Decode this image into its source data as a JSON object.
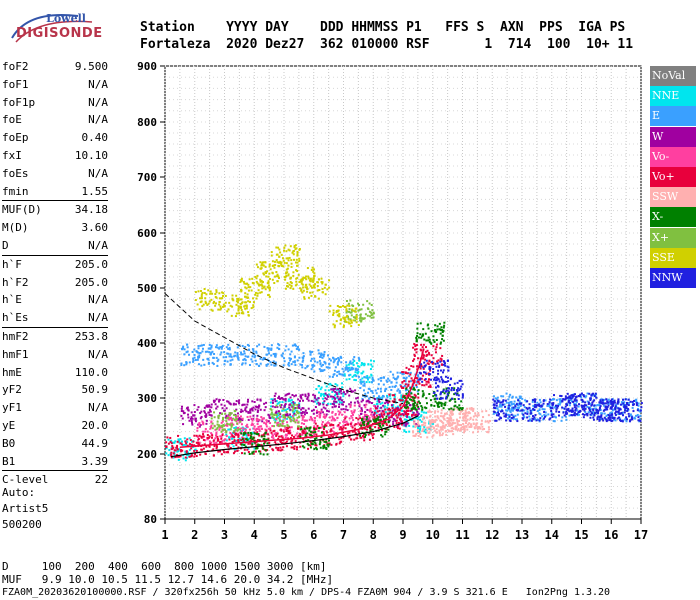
{
  "logo": {
    "brand": "Lowell",
    "product": "DIGISONDE"
  },
  "header": {
    "labels": "Station    YYYY DAY    DDD HHMMSS P1   FFS S  AXN  PPS  IGA PS",
    "values": "Fortaleza  2020 Dez27  362 010000 RSF       1  714  100  10+ 11"
  },
  "params": [
    {
      "name": "foF2",
      "value": "9.500",
      "sep": false
    },
    {
      "name": "foF1",
      "value": "N/A",
      "sep": false
    },
    {
      "name": "foF1p",
      "value": "N/A",
      "sep": false
    },
    {
      "name": "foE",
      "value": "N/A",
      "sep": false
    },
    {
      "name": "foEp",
      "value": "0.40",
      "sep": false
    },
    {
      "name": "fxI",
      "value": "10.10",
      "sep": false
    },
    {
      "name": "foEs",
      "value": "N/A",
      "sep": false
    },
    {
      "name": "fmin",
      "value": "1.55",
      "sep": false
    },
    {
      "name": "MUF(D)",
      "value": "34.18",
      "sep": true
    },
    {
      "name": "M(D)",
      "value": "3.60",
      "sep": false
    },
    {
      "name": "D",
      "value": "N/A",
      "sep": false
    },
    {
      "name": "h`F",
      "value": "205.0",
      "sep": true
    },
    {
      "name": "h`F2",
      "value": "205.0",
      "sep": false
    },
    {
      "name": "h`E",
      "value": "N/A",
      "sep": false
    },
    {
      "name": "h`Es",
      "value": "N/A",
      "sep": false
    },
    {
      "name": "hmF2",
      "value": "253.8",
      "sep": true
    },
    {
      "name": "hmF1",
      "value": "N/A",
      "sep": false
    },
    {
      "name": "hmE",
      "value": "110.0",
      "sep": false
    },
    {
      "name": "yF2",
      "value": "50.9",
      "sep": false
    },
    {
      "name": "yF1",
      "value": "N/A",
      "sep": false
    },
    {
      "name": "yE",
      "value": "20.0",
      "sep": false
    },
    {
      "name": "B0",
      "value": "44.9",
      "sep": false
    },
    {
      "name": "B1",
      "value": "3.39",
      "sep": false
    },
    {
      "name": "C-level",
      "value": "22",
      "sep": true
    }
  ],
  "auto": {
    "line1": "Auto:",
    "line2": "Artist5",
    "line3": "500200"
  },
  "legend": [
    {
      "label": "NoVal",
      "bg": "#808080",
      "fg": "#ffffff"
    },
    {
      "label": "NNE",
      "bg": "#00e5ee",
      "fg": "#ffffff"
    },
    {
      "label": "E",
      "bg": "#3aa0ff",
      "fg": "#ffffff"
    },
    {
      "label": "W",
      "bg": "#a000a0",
      "fg": "#ffffff"
    },
    {
      "label": "Vo-",
      "bg": "#ff3fa0",
      "fg": "#ffffff"
    },
    {
      "label": "Vo+",
      "bg": "#e8003c",
      "fg": "#ffffff"
    },
    {
      "label": "SSW",
      "bg": "#ffb0b0",
      "fg": "#ffffff"
    },
    {
      "label": "X-",
      "bg": "#008000",
      "fg": "#ffffff"
    },
    {
      "label": "X+",
      "bg": "#80c040",
      "fg": "#ffffff"
    },
    {
      "label": "SSE",
      "bg": "#d0d000",
      "fg": "#ffffff"
    },
    {
      "label": "NNW",
      "bg": "#2020e0",
      "fg": "#ffffff"
    }
  ],
  "footer": {
    "d_row": "D     100  200  400  600  800 1000 1500 3000 [km]",
    "muf_row": "MUF   9.9 10.0 10.5 11.5 12.7 14.6 20.0 34.2 [MHz]",
    "file_row": "FZA0M_20203620100000.RSF / 320fx256h 50 kHz 5.0 km / DPS-4 FZA0M 904 / 3.9 S 321.6 E   Ion2Png 1.3.20"
  },
  "chart_data": {
    "type": "scatter",
    "title": "",
    "xlabel": "",
    "ylabel": "",
    "x_ticks": [
      1,
      2,
      3,
      4,
      5,
      6,
      7,
      8,
      9,
      10,
      11,
      12,
      13,
      14,
      15,
      16,
      17
    ],
    "y_ticks": [
      80,
      200,
      300,
      400,
      500,
      600,
      700,
      800,
      900
    ],
    "xlim": [
      1,
      17
    ],
    "ylim": [
      80,
      900
    ],
    "grid": true,
    "legend_position": "right",
    "traces": [
      {
        "name": "NNE",
        "color": "#00e5ee",
        "x": [
          1.5,
          3.5,
          5.0,
          6.5,
          7.5,
          8.5,
          9.5
        ],
        "y": [
          210,
          230,
          280,
          310,
          350,
          290,
          260
        ]
      },
      {
        "name": "E",
        "color": "#3aa0ff",
        "x": [
          2,
          3,
          4,
          5,
          6,
          7,
          8,
          9,
          12.5,
          13,
          14,
          15,
          16,
          16.8
        ],
        "y": [
          380,
          380,
          380,
          380,
          370,
          360,
          320,
          330,
          290,
          280,
          280,
          290,
          280,
          280
        ]
      },
      {
        "name": "W",
        "color": "#a000a0",
        "x": [
          2.0,
          3.0,
          4.0,
          5.0,
          6.0,
          7.0,
          8.0,
          9.0
        ],
        "y": [
          270,
          280,
          280,
          290,
          290,
          300,
          280,
          270
        ]
      },
      {
        "name": "Vo-",
        "color": "#ff3fa0",
        "x": [
          2.5,
          3.5,
          4.5,
          5.5,
          6.5,
          7.5
        ],
        "y": [
          240,
          250,
          250,
          250,
          260,
          270
        ]
      },
      {
        "name": "Vo+",
        "color": "#e8003c",
        "x": [
          1.5,
          2.5,
          3.5,
          4.5,
          5.5,
          6.5,
          7.5,
          8.5,
          9.0,
          9.4,
          9.8
        ],
        "y": [
          215,
          218,
          222,
          226,
          230,
          236,
          246,
          264,
          290,
          340,
          380
        ]
      },
      {
        "name": "SSW",
        "color": "#ffb0b0",
        "x": [
          9.8,
          10.2,
          10.6,
          11.0,
          11.4
        ],
        "y": [
          250,
          260,
          255,
          265,
          260
        ]
      },
      {
        "name": "X-",
        "color": "#008000",
        "x": [
          4.0,
          6.0,
          8.0,
          9.5,
          9.9,
          10.5
        ],
        "y": [
          220,
          230,
          250,
          300,
          420,
          300
        ]
      },
      {
        "name": "X+",
        "color": "#80c040",
        "x": [
          3.0,
          5.0,
          7.5
        ],
        "y": [
          260,
          270,
          460
        ]
      },
      {
        "name": "SSE",
        "color": "#d0d000",
        "x": [
          2.5,
          3.5,
          4.0,
          4.5,
          5.0,
          5.5,
          6.0,
          7.0
        ],
        "y": [
          480,
          470,
          500,
          530,
          560,
          520,
          500,
          450
        ]
      },
      {
        "name": "NNW",
        "color": "#2020e0",
        "x": [
          10.0,
          10.5,
          12.5,
          13.5,
          14.5,
          15.0,
          15.5,
          16.0,
          16.5
        ],
        "y": [
          350,
          320,
          280,
          280,
          290,
          290,
          280,
          280,
          280
        ]
      }
    ]
  }
}
